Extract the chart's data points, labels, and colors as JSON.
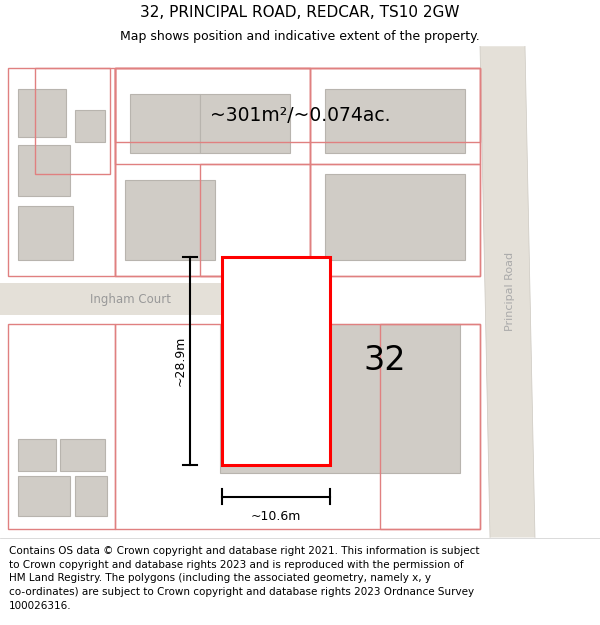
{
  "title": "32, PRINCIPAL ROAD, REDCAR, TS10 2GW",
  "subtitle": "Map shows position and indicative extent of the property.",
  "footer": "Contains OS data © Crown copyright and database right 2021. This information is subject\nto Crown copyright and database rights 2023 and is reproduced with the permission of\nHM Land Registry. The polygons (including the associated geometry, namely x, y\nco-ordinates) are subject to Crown copyright and database rights 2023 Ordnance Survey\n100026316.",
  "area_label": "~301m²/~0.074ac.",
  "width_label": "~10.6m",
  "height_label": "~28.9m",
  "property_number": "32",
  "map_bg": "#eeece8",
  "building_fill": "#d0ccc6",
  "building_stroke": "#b8b4ae",
  "highlight_fill": "#ffffff",
  "highlight_stroke": "#ff0000",
  "pink_stroke": "#e08080",
  "road_fill": "#e4e0d8",
  "street_label_pr": "Principal Road",
  "street_label_ic": "Ingham Court",
  "title_fontsize": 11,
  "subtitle_fontsize": 9,
  "footer_fontsize": 7.5
}
